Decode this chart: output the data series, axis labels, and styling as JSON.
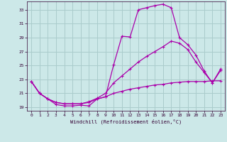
{
  "xlabel": "Windchill (Refroidissement éolien,°C)",
  "background_color": "#cce8e8",
  "grid_color": "#aacccc",
  "line_color": "#aa00aa",
  "xlim": [
    -0.5,
    23.5
  ],
  "ylim": [
    18.5,
    34.2
  ],
  "xticks": [
    0,
    1,
    2,
    3,
    4,
    5,
    6,
    7,
    8,
    9,
    10,
    11,
    12,
    13,
    14,
    15,
    16,
    17,
    18,
    19,
    20,
    21,
    22,
    23
  ],
  "yticks": [
    19,
    21,
    23,
    25,
    27,
    29,
    31,
    33
  ],
  "line1_x": [
    0,
    1,
    2,
    3,
    4,
    5,
    6,
    7,
    8,
    9,
    10,
    11,
    12,
    13,
    14,
    15,
    16,
    17,
    18,
    19,
    20,
    21,
    22,
    23
  ],
  "line1_y": [
    22.7,
    21.0,
    20.2,
    19.4,
    19.2,
    19.2,
    19.3,
    19.2,
    20.2,
    20.5,
    25.1,
    29.2,
    29.1,
    33.0,
    33.3,
    33.6,
    33.8,
    33.3,
    29.0,
    28.0,
    26.5,
    24.2,
    22.5,
    24.3
  ],
  "line2_x": [
    0,
    1,
    2,
    3,
    4,
    5,
    6,
    7,
    8,
    9,
    10,
    11,
    12,
    13,
    14,
    15,
    16,
    17,
    18,
    19,
    20,
    21,
    22,
    23
  ],
  "line2_y": [
    22.7,
    21.0,
    20.2,
    19.7,
    19.5,
    19.5,
    19.5,
    19.8,
    20.3,
    21.0,
    22.5,
    23.5,
    24.5,
    25.5,
    26.3,
    27.0,
    27.7,
    28.5,
    28.2,
    27.3,
    25.5,
    24.0,
    22.5,
    24.5
  ],
  "line3_x": [
    0,
    1,
    2,
    3,
    4,
    5,
    6,
    7,
    8,
    9,
    10,
    11,
    12,
    13,
    14,
    15,
    16,
    17,
    18,
    19,
    20,
    21,
    22,
    23
  ],
  "line3_y": [
    22.7,
    21.0,
    20.2,
    19.7,
    19.5,
    19.5,
    19.5,
    19.7,
    20.2,
    20.5,
    21.0,
    21.3,
    21.6,
    21.8,
    22.0,
    22.2,
    22.3,
    22.5,
    22.6,
    22.7,
    22.7,
    22.7,
    22.8,
    22.8
  ]
}
